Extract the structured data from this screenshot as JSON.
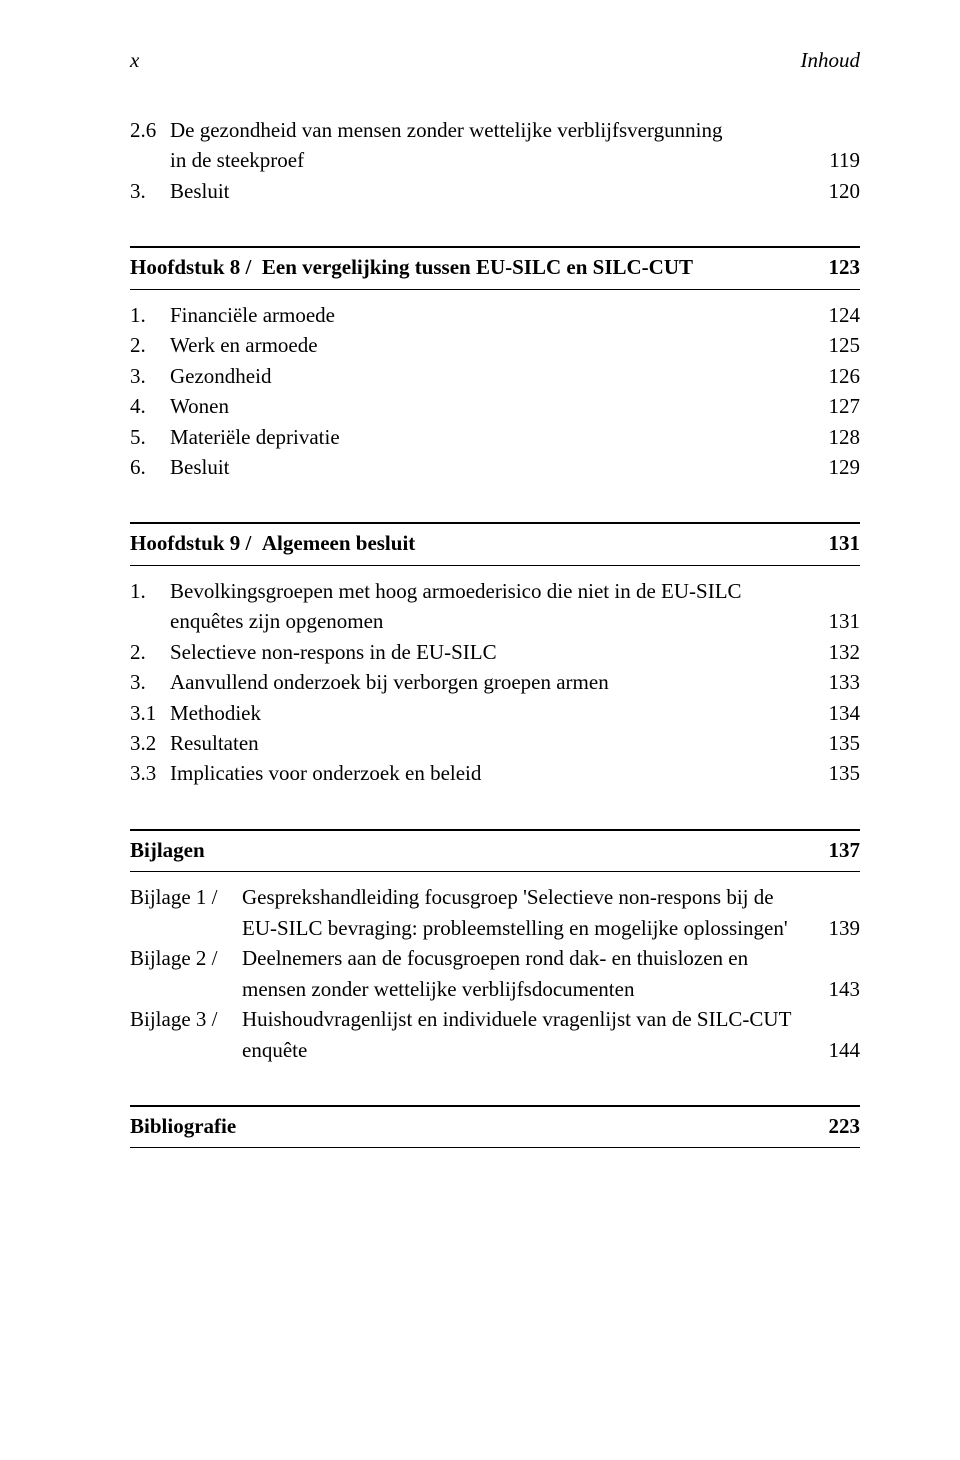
{
  "running_head": {
    "left": "x",
    "right": "Inhoud"
  },
  "entries": {
    "e1_num": "2.6",
    "e1_text": "De gezondheid van mensen zonder wettelijke verblijfsvergunning",
    "e1_text2": "in de steekproef",
    "e1_page": "119",
    "e2_num": "3.",
    "e2_text": "Besluit",
    "e2_page": "120",
    "ch8_label": "Hoofdstuk 8 /",
    "ch8_title": "Een vergelijking tussen EU-SILC en SILC-CUT",
    "ch8_page": "123",
    "c8_1_num": "1.",
    "c8_1_text": "Financiële armoede",
    "c8_1_page": "124",
    "c8_2_num": "2.",
    "c8_2_text": "Werk en armoede",
    "c8_2_page": "125",
    "c8_3_num": "3.",
    "c8_3_text": "Gezondheid",
    "c8_3_page": "126",
    "c8_4_num": "4.",
    "c8_4_text": "Wonen",
    "c8_4_page": "127",
    "c8_5_num": "5.",
    "c8_5_text": "Materiële deprivatie",
    "c8_5_page": "128",
    "c8_6_num": "6.",
    "c8_6_text": "Besluit",
    "c8_6_page": "129",
    "ch9_label": "Hoofdstuk 9 /",
    "ch9_title": "Algemeen besluit",
    "ch9_page": "131",
    "c9_1_num": "1.",
    "c9_1_text": "Bevolkingsgroepen met hoog armoederisico die niet in de EU-SILC",
    "c9_1_text2": "enquêtes zijn opgenomen",
    "c9_1_page": "131",
    "c9_2_num": "2.",
    "c9_2_text": "Selectieve non-respons in de EU-SILC",
    "c9_2_page": "132",
    "c9_3_num": "3.",
    "c9_3_text": "Aanvullend onderzoek bij verborgen groepen armen",
    "c9_3_page": "133",
    "c9_31_num": "3.1",
    "c9_31_text": "Methodiek",
    "c9_31_page": "134",
    "c9_32_num": "3.2",
    "c9_32_text": "Resultaten",
    "c9_32_page": "135",
    "c9_33_num": "3.3",
    "c9_33_text": "Implicaties voor onderzoek en beleid",
    "c9_33_page": "135",
    "bijlagen_label": "Bijlagen",
    "bijlagen_page": "137",
    "b1_label": "Bijlage 1 /",
    "b1_l1": "Gesprekshandleiding focusgroep 'Selectieve non-respons bij de",
    "b1_l2": "EU-SILC bevraging: probleemstelling en mogelijke oplossingen'",
    "b1_page": "139",
    "b2_label": "Bijlage 2 /",
    "b2_l1": "Deelnemers aan de focusgroepen rond dak- en thuislozen en",
    "b2_l2": "mensen zonder wettelijke verblijfsdocumenten",
    "b2_page": "143",
    "b3_label": "Bijlage 3 /",
    "b3_l1": "Huishoudvragenlijst en individuele vragenlijst van de SILC-CUT",
    "b3_l2": "enquête",
    "b3_page": "144",
    "biblio_label": "Bibliografie",
    "biblio_page": "223"
  }
}
